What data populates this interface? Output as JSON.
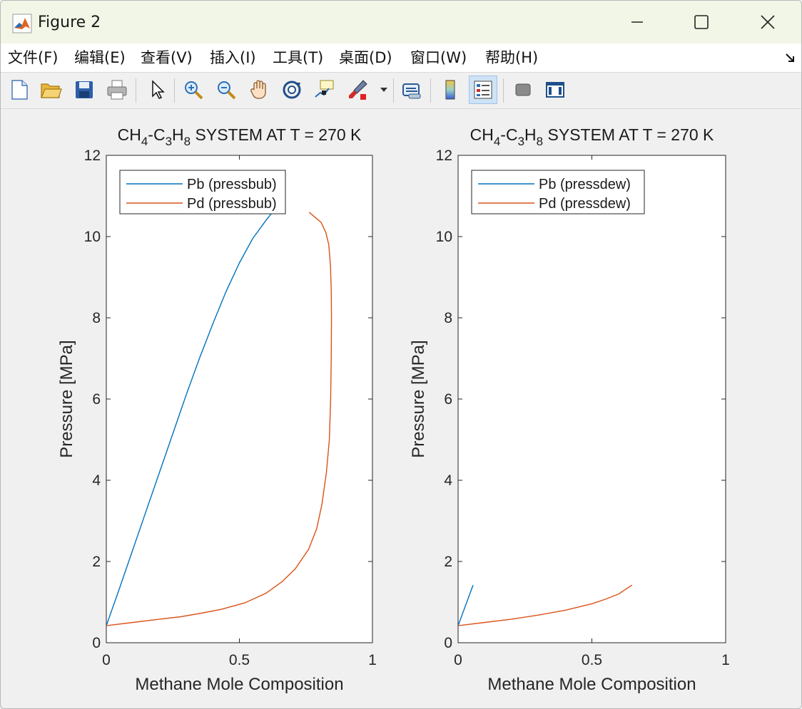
{
  "window": {
    "title": "Figure 2"
  },
  "menu": [
    {
      "label": "文件(F)"
    },
    {
      "label": "编辑(E)"
    },
    {
      "label": "查看(V)"
    },
    {
      "label": "插入(I)"
    },
    {
      "label": "工具(T)"
    },
    {
      "label": "桌面(D)"
    },
    {
      "label": "窗口(W)"
    },
    {
      "label": "帮助(H)"
    }
  ],
  "toolbar": {
    "icons": [
      "new-figure-icon",
      "open-folder-icon",
      "save-icon",
      "print-icon",
      "pointer-icon",
      "zoom-in-icon",
      "zoom-out-icon",
      "pan-hand-icon",
      "rotate-3d-icon",
      "data-cursor-icon",
      "brush-icon",
      "brush-dropdown-icon",
      "link-plot-icon",
      "colorbar-icon",
      "legend-icon",
      "hide-plot-tools-icon",
      "show-plot-tools-icon"
    ],
    "pressed": [
      "legend-icon"
    ]
  },
  "colors": {
    "pb": "#0072bd",
    "pd": "#d95319"
  },
  "chart_data": [
    {
      "type": "line",
      "title": {
        "base1": "CH",
        "sub1": "4",
        "mid1": "-C",
        "sub2": "3",
        "mid2": "H",
        "sub3": "8",
        "rest": " SYSTEM AT T = 270 K"
      },
      "xlabel": "Methane Mole Composition",
      "ylabel": "Pressure [MPa]",
      "xlim": [
        0,
        1
      ],
      "ylim": [
        0,
        12
      ],
      "xticks": [
        "0",
        "0.5",
        "1"
      ],
      "yticks": [
        "0",
        "2",
        "4",
        "6",
        "8",
        "10",
        "12"
      ],
      "legend_position": "top-left",
      "series": [
        {
          "name": "Pb (pressbub)",
          "color": "#0072bd",
          "x": [
            0,
            0.05,
            0.1,
            0.15,
            0.2,
            0.25,
            0.3,
            0.35,
            0.4,
            0.45,
            0.5,
            0.55,
            0.6,
            0.643
          ],
          "y": [
            0.42,
            1.35,
            2.3,
            3.25,
            4.2,
            5.15,
            6.1,
            7.0,
            7.85,
            8.65,
            9.35,
            9.95,
            10.4,
            10.75
          ]
        },
        {
          "name": "Pd (pressbub)",
          "color": "#d95319",
          "x": [
            0,
            0.1,
            0.2,
            0.28,
            0.35,
            0.43,
            0.52,
            0.6,
            0.66,
            0.71,
            0.76,
            0.79,
            0.81,
            0.827,
            0.838,
            0.843,
            0.845,
            0.846,
            0.845,
            0.842,
            0.836,
            0.825,
            0.807,
            0.762
          ],
          "y": [
            0.42,
            0.5,
            0.58,
            0.64,
            0.72,
            0.82,
            0.98,
            1.22,
            1.5,
            1.82,
            2.3,
            2.8,
            3.4,
            4.2,
            5.0,
            6.0,
            7.0,
            8.0,
            8.7,
            9.3,
            9.8,
            10.1,
            10.35,
            10.6
          ]
        }
      ]
    },
    {
      "type": "line",
      "title": {
        "base1": "CH",
        "sub1": "4",
        "mid1": "-C",
        "sub2": "3",
        "mid2": "H",
        "sub3": "8",
        "rest": " SYSTEM AT T = 270 K"
      },
      "xlabel": "Methane Mole Composition",
      "ylabel": "Pressure [MPa]",
      "xlim": [
        0,
        1
      ],
      "ylim": [
        0,
        12
      ],
      "xticks": [
        "0",
        "0.5",
        "1"
      ],
      "yticks": [
        "0",
        "2",
        "4",
        "6",
        "8",
        "10",
        "12"
      ],
      "legend_position": "top-left",
      "series": [
        {
          "name": "Pb (pressdew)",
          "color": "#0072bd",
          "x": [
            0,
            0.056
          ],
          "y": [
            0.42,
            1.42
          ]
        },
        {
          "name": "Pd (pressdew)",
          "color": "#d95319",
          "x": [
            0,
            0.1,
            0.2,
            0.3,
            0.4,
            0.5,
            0.55,
            0.6,
            0.65
          ],
          "y": [
            0.42,
            0.5,
            0.58,
            0.68,
            0.8,
            0.96,
            1.07,
            1.2,
            1.42
          ]
        }
      ]
    }
  ]
}
